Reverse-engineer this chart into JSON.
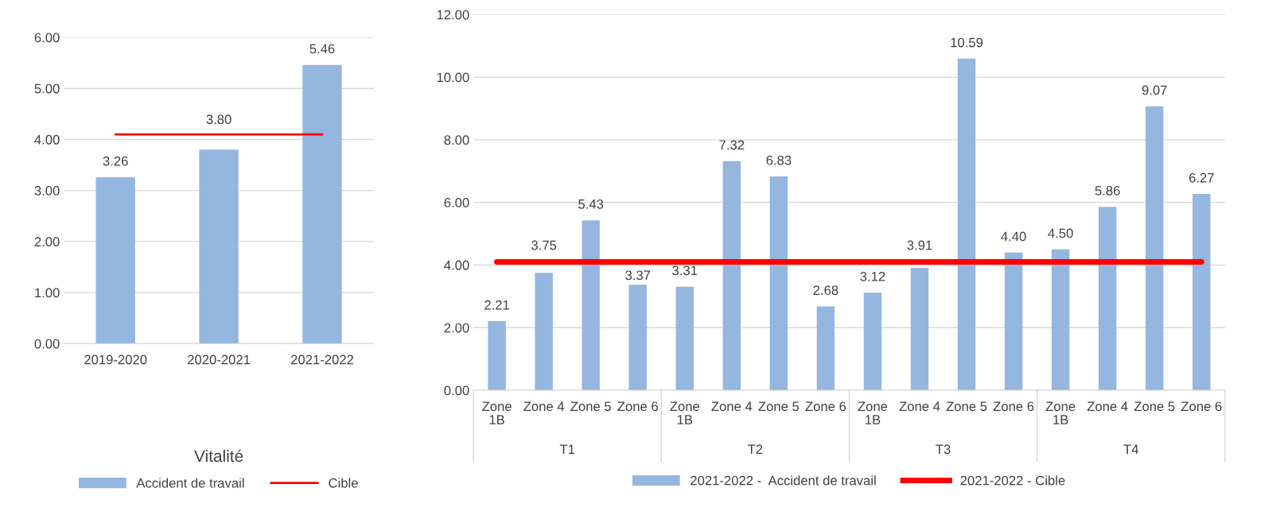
{
  "chart_data": [
    {
      "type": "bar",
      "xlabel": "Vitalité",
      "categories": [
        "2019-2020",
        "2020-2021",
        "2021-2022"
      ],
      "series": [
        {
          "name": "Accident de travail",
          "color": "#95b6df",
          "values": [
            3.26,
            3.8,
            5.46
          ],
          "value_labels": [
            "3.26",
            "3.80",
            "5.46"
          ]
        },
        {
          "name": "Cible",
          "type": "line",
          "color": "#ff0000",
          "values": [
            4.1,
            4.1,
            4.1
          ]
        }
      ],
      "ylim": [
        0,
        6
      ],
      "yticks": [
        {
          "value": 0,
          "label": "0.00"
        },
        {
          "value": 1,
          "label": "1.00"
        },
        {
          "value": 2,
          "label": "2.00"
        },
        {
          "value": 3,
          "label": "3.00"
        },
        {
          "value": 4,
          "label": "4.00"
        },
        {
          "value": 5,
          "label": "5.00"
        },
        {
          "value": 6,
          "label": "6.00"
        }
      ],
      "grid": "y",
      "legend": "bottom",
      "marker": "none"
    },
    {
      "type": "bar",
      "categories": [
        "Zone 1B",
        "Zone 4",
        "Zone 5",
        "Zone 6",
        "Zone 1B",
        "Zone 4",
        "Zone 5",
        "Zone 6",
        "Zone 1B",
        "Zone 4",
        "Zone 5",
        "Zone 6",
        "Zone 1B",
        "Zone 4",
        "Zone 5",
        "Zone 6"
      ],
      "annotations": [
        "T1",
        "T2",
        "T3",
        "T4"
      ],
      "series": [
        {
          "name": "2021-2022 -  Accident de travail",
          "color": "#95b6df",
          "values": [
            2.21,
            3.75,
            5.43,
            3.37,
            3.31,
            7.32,
            6.83,
            2.68,
            3.12,
            3.91,
            10.59,
            4.4,
            4.5,
            5.86,
            9.07,
            6.27
          ],
          "value_labels": [
            "2.21",
            "3.75",
            "5.43",
            "3.37",
            "3.31",
            "7.32",
            "6.83",
            "2.68",
            "3.12",
            "3.91",
            "10.59",
            "4.40",
            "4.50",
            "5.86",
            "9.07",
            "6.27"
          ]
        },
        {
          "name": "2021-2022 - Cible",
          "type": "line",
          "color": "#ff0000",
          "values": [
            4.1,
            4.1,
            4.1,
            4.1,
            4.1,
            4.1,
            4.1,
            4.1,
            4.1,
            4.1,
            4.1,
            4.1,
            4.1,
            4.1,
            4.1,
            4.1
          ]
        }
      ],
      "ylim": [
        0,
        12
      ],
      "yticks": [
        {
          "value": 0,
          "label": "0.00"
        },
        {
          "value": 2,
          "label": "2.00"
        },
        {
          "value": 4,
          "label": "4.00"
        },
        {
          "value": 6,
          "label": "6.00"
        },
        {
          "value": 8,
          "label": "8.00"
        },
        {
          "value": 10,
          "label": "10.00"
        },
        {
          "value": 12,
          "label": "12.00"
        }
      ],
      "grid": "y",
      "legend": "bottom",
      "marker": "none"
    }
  ]
}
